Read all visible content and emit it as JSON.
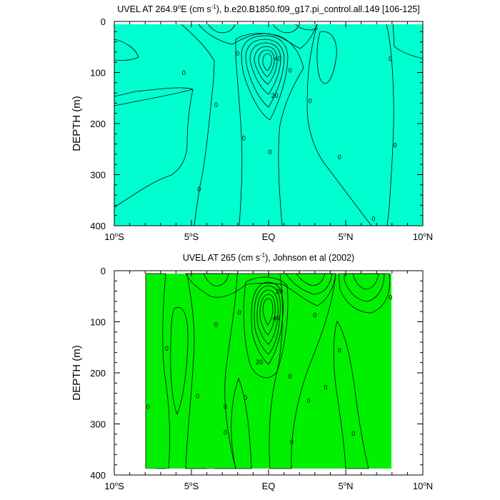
{
  "panels": [
    {
      "title_main": "UVEL AT 264.9",
      "title_deg": "o",
      "title_after_deg": "E (cm s",
      "title_exp": "-1",
      "title_tail": "), b.e20.B1850.f09_g17.pi_control.all.149 [106-125]",
      "ylabel": "DEPTH (m)"
    },
    {
      "title_main": "UVEL AT 265 (cm s",
      "title_exp": "-1",
      "title_tail": "), Johnson et al (2002)",
      "ylabel": "DEPTH (m)"
    }
  ],
  "colors": {
    "c_neg3": "#1E90FF",
    "c_neg2": "#00BFFF",
    "c_neg1": "#00F5FF",
    "c_0": "#00FFD0",
    "c_pos1": "#00F000",
    "c_pos2": "#66EE00",
    "c_pos3": "#CCFF00",
    "c_pos4": "#FFEE00",
    "c_pos5": "#FFCC00",
    "c_pos6": "#FFA500",
    "c_pos7": "#FF8000",
    "c_pos8": "#FF4000"
  },
  "chart_data": [
    {
      "type": "heatmap",
      "x_ticks": [
        "10°S",
        "5°S",
        "EQ",
        "5°N",
        "10°N"
      ],
      "x_values": [
        -10,
        -5,
        0,
        5,
        10
      ],
      "xlim": [
        -10,
        10
      ],
      "y_ticks": [
        0,
        100,
        200,
        300,
        400
      ],
      "ylim": [
        400,
        0
      ],
      "contour_labels": [
        {
          "text": "0",
          "lon": -5.5,
          "depth": 100
        },
        {
          "text": "0",
          "lon": -3.4,
          "depth": 163
        },
        {
          "text": "0",
          "lon": -4.5,
          "depth": 328
        },
        {
          "text": "0",
          "lon": -2.0,
          "depth": 62
        },
        {
          "text": "0",
          "lon": -1.6,
          "depth": 228
        },
        {
          "text": "0",
          "lon": 0.1,
          "depth": 255
        },
        {
          "text": "0",
          "lon": 1.4,
          "depth": 95
        },
        {
          "text": "0",
          "lon": 2.7,
          "depth": 155
        },
        {
          "text": "0",
          "lon": 4.6,
          "depth": 265
        },
        {
          "text": "0",
          "lon": 6.8,
          "depth": 386
        },
        {
          "text": "0",
          "lon": 7.9,
          "depth": 73
        },
        {
          "text": "0",
          "lon": 8.2,
          "depth": 242
        },
        {
          "text": "20",
          "lon": 0.4,
          "depth": 145
        },
        {
          "text": "40",
          "lon": 0.6,
          "depth": 72
        }
      ]
    },
    {
      "type": "heatmap",
      "x_ticks": [
        "10°S",
        "5°S",
        "EQ",
        "5°N",
        "10°N"
      ],
      "x_values": [
        -10,
        -5,
        0,
        5,
        10
      ],
      "xlim": [
        -10,
        10
      ],
      "y_ticks": [
        0,
        100,
        200,
        300,
        400
      ],
      "ylim": [
        400,
        0
      ],
      "contour_labels": [
        {
          "text": "0",
          "lon": -6.6,
          "depth": 152
        },
        {
          "text": "0",
          "lon": -7.8,
          "depth": 266
        },
        {
          "text": "0",
          "lon": -4.6,
          "depth": 245
        },
        {
          "text": "0",
          "lon": -3.4,
          "depth": 105
        },
        {
          "text": "0",
          "lon": -2.8,
          "depth": 266
        },
        {
          "text": "0",
          "lon": -2.8,
          "depth": 316
        },
        {
          "text": "0",
          "lon": -1.9,
          "depth": 81
        },
        {
          "text": "0",
          "lon": -1.5,
          "depth": 248
        },
        {
          "text": "0",
          "lon": 1.4,
          "depth": 206
        },
        {
          "text": "0",
          "lon": 1.5,
          "depth": 335
        },
        {
          "text": "0",
          "lon": 3.0,
          "depth": 87
        },
        {
          "text": "0",
          "lon": 2.6,
          "depth": 254
        },
        {
          "text": "0",
          "lon": 3.7,
          "depth": 228
        },
        {
          "text": "0",
          "lon": 4.6,
          "depth": 155
        },
        {
          "text": "0",
          "lon": 5.5,
          "depth": 318
        },
        {
          "text": "0",
          "lon": 7.9,
          "depth": 52
        },
        {
          "text": "20",
          "lon": 0.7,
          "depth": 40
        },
        {
          "text": "20",
          "lon": -0.6,
          "depth": 178
        },
        {
          "text": "40",
          "lon": 0.5,
          "depth": 92
        }
      ]
    }
  ]
}
